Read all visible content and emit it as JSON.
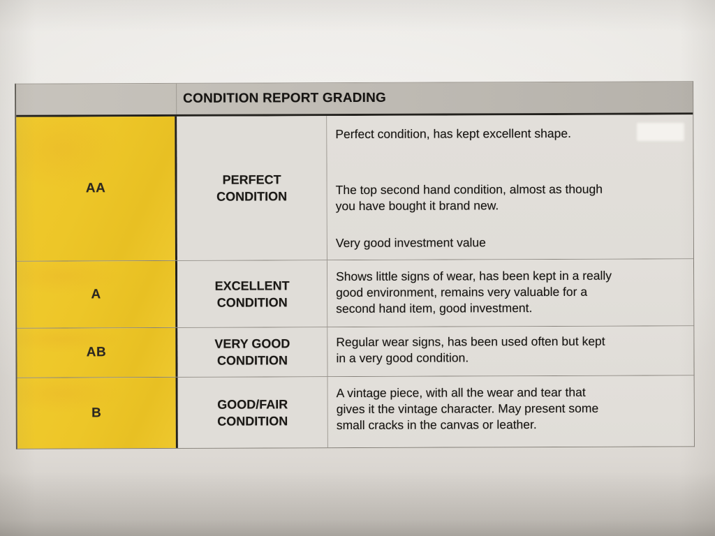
{
  "table": {
    "title": "CONDITION REPORT GRADING",
    "rows": [
      {
        "grade": "AA",
        "condition": "PERFECT CONDITION",
        "paragraphs": [
          [
            "Perfect condition, has kept excellent shape."
          ],
          [
            "The top second hand condition, almost as though",
            "you have bought it brand new."
          ],
          [
            "Very good investment value"
          ]
        ]
      },
      {
        "grade": "A",
        "condition": "EXCELLENT CONDITION",
        "paragraphs": [
          [
            "Shows little signs of wear, has been kept in a really",
            "good environment, remains very valuable for a",
            "second hand item, good investment."
          ]
        ]
      },
      {
        "grade": "AB",
        "condition": "VERY GOOD CONDITION",
        "paragraphs": [
          [
            "Regular wear signs, has been used often but kept",
            "in a very good condition."
          ]
        ]
      },
      {
        "grade": "B",
        "condition": "GOOD/FAIR CONDITION",
        "paragraphs": [
          [
            "A vintage piece, with all the wear and tear that",
            "gives it the vintage character. May present some",
            "small cracks in the canvas or leather."
          ]
        ]
      }
    ],
    "colors": {
      "grade_column": "#edc628",
      "header_band": "#c0bcb5",
      "cell_background": "#e0ddd8",
      "paper": "#e7e4e0",
      "text": "#1d1b18",
      "border_dark": "#23211d"
    }
  }
}
